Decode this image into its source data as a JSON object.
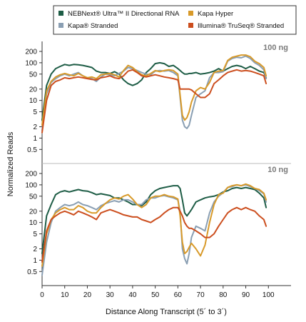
{
  "chart_data": {
    "type": "line",
    "xlabel": "Distance Along Transcript (5´ to 3´)",
    "ylabel": "Normalized Reads",
    "xlim": [
      0,
      110
    ],
    "x_ticks": [
      0,
      10,
      20,
      30,
      40,
      50,
      60,
      70,
      80,
      90,
      100
    ],
    "y_scale": "log",
    "ylim": [
      0.3,
      260
    ],
    "y_ticks": [
      0.5,
      1,
      2,
      5,
      10,
      20,
      50,
      100,
      200
    ],
    "y_tick_labels": [
      "0.5",
      "1",
      "2",
      "5",
      "10",
      "20",
      "50",
      "100",
      "200"
    ],
    "x": [
      0,
      2,
      4,
      6,
      8,
      10,
      12,
      14,
      16,
      18,
      20,
      22,
      24,
      26,
      28,
      30,
      32,
      34,
      36,
      38,
      40,
      42,
      44,
      46,
      48,
      50,
      52,
      54,
      56,
      58,
      60,
      61,
      62,
      63,
      64,
      65,
      66,
      68,
      70,
      72,
      74,
      76,
      78,
      80,
      82,
      84,
      86,
      88,
      90,
      92,
      94,
      96,
      98,
      99
    ],
    "legend": {
      "placement": "top",
      "entries": [
        {
          "name": "NEBNext® Ultra™ II Directional RNA",
          "color": "#1d5c45"
        },
        {
          "name": "Kapa® Stranded",
          "color": "#8a9fb3"
        },
        {
          "name": "Kapa Hyper",
          "color": "#d89a2a"
        },
        {
          "name": "Illumina® TruSeq® Stranded",
          "color": "#cc4e1e"
        }
      ]
    },
    "panels": [
      {
        "label": "100 ng",
        "series": [
          {
            "name": "NEBNext® Ultra™ II Directional RNA",
            "color": "#1d5c45",
            "values": [
              3,
              25,
              50,
              70,
              80,
              90,
              85,
              90,
              88,
              85,
              80,
              75,
              60,
              55,
              55,
              52,
              58,
              50,
              35,
              28,
              25,
              28,
              35,
              55,
              70,
              95,
              100,
              95,
              80,
              85,
              70,
              62,
              55,
              50,
              50,
              52,
              52,
              55,
              50,
              52,
              55,
              60,
              70,
              60,
              70,
              80,
              85,
              80,
              70,
              80,
              70,
              60,
              55,
              40
            ]
          },
          {
            "name": "Kapa® Stranded",
            "color": "#8a9fb3",
            "values": [
              1.6,
              15,
              30,
              38,
              45,
              50,
              45,
              50,
              55,
              45,
              40,
              38,
              32,
              42,
              50,
              48,
              45,
              52,
              60,
              75,
              70,
              62,
              55,
              50,
              48,
              60,
              62,
              60,
              62,
              55,
              45,
              12,
              3,
              2,
              1.8,
              2.2,
              4,
              12,
              15,
              18,
              40,
              55,
              55,
              58,
              110,
              130,
              140,
              135,
              150,
              130,
              100,
              85,
              65,
              38
            ]
          },
          {
            "name": "Kapa Hyper",
            "color": "#d89a2a",
            "values": [
              2.2,
              18,
              32,
              42,
              48,
              52,
              48,
              45,
              52,
              45,
              40,
              42,
              38,
              48,
              50,
              52,
              48,
              42,
              62,
              85,
              75,
              58,
              48,
              45,
              52,
              62,
              58,
              62,
              65,
              62,
              50,
              14,
              4,
              3,
              3.5,
              5,
              9,
              18,
              22,
              20,
              30,
              55,
              60,
              62,
              115,
              140,
              150,
              160,
              160,
              145,
              110,
              95,
              75,
              45
            ]
          },
          {
            "name": "Illumina® TruSeq® Stranded",
            "color": "#cc4e1e",
            "values": [
              1.4,
              10,
              25,
              32,
              35,
              40,
              38,
              40,
              42,
              40,
              38,
              36,
              35,
              40,
              42,
              45,
              40,
              38,
              45,
              60,
              65,
              55,
              45,
              42,
              45,
              48,
              45,
              42,
              40,
              38,
              35,
              20,
              20,
              20,
              20,
              20,
              19,
              15,
              12,
              12,
              15,
              28,
              35,
              45,
              55,
              60,
              65,
              60,
              62,
              60,
              55,
              50,
              45,
              28
            ]
          }
        ]
      },
      {
        "label": "10 ng",
        "series": [
          {
            "name": "NEBNext® Ultra™ II Directional RNA",
            "color": "#1d5c45",
            "values": [
              1.5,
              15,
              30,
              55,
              65,
              70,
              65,
              70,
              75,
              70,
              68,
              62,
              55,
              58,
              55,
              52,
              45,
              45,
              40,
              35,
              30,
              30,
              28,
              35,
              55,
              70,
              80,
              85,
              90,
              95,
              95,
              80,
              40,
              18,
              15,
              18,
              22,
              35,
              40,
              45,
              48,
              50,
              55,
              65,
              70,
              80,
              85,
              80,
              85,
              80,
              75,
              60,
              45,
              25
            ]
          },
          {
            "name": "Kapa® Stranded",
            "color": "#8a9fb3",
            "values": [
              0.4,
              3,
              10,
              20,
              25,
              30,
              28,
              30,
              35,
              30,
              28,
              25,
              22,
              28,
              32,
              35,
              38,
              35,
              40,
              40,
              35,
              30,
              30,
              40,
              45,
              45,
              50,
              52,
              48,
              45,
              40,
              20,
              2,
              1.1,
              0.8,
              1.5,
              4,
              8,
              7,
              6,
              18,
              35,
              50,
              62,
              85,
              90,
              100,
              95,
              100,
              90,
              80,
              70,
              58,
              35
            ]
          },
          {
            "name": "Kapa Hyper",
            "color": "#d89a2a",
            "values": [
              0.7,
              5,
              12,
              18,
              22,
              25,
              22,
              22,
              28,
              25,
              20,
              18,
              18,
              25,
              32,
              40,
              45,
              42,
              50,
              55,
              42,
              30,
              25,
              30,
              45,
              50,
              50,
              55,
              50,
              48,
              42,
              15,
              3,
              1.5,
              1.7,
              2.2,
              2.8,
              2,
              1.3,
              2.5,
              10,
              30,
              55,
              60,
              85,
              95,
              100,
              95,
              105,
              95,
              80,
              75,
              60,
              40
            ]
          },
          {
            "name": "Illumina® TruSeq® Stranded",
            "color": "#cc4e1e",
            "values": [
              0.9,
              6,
              12,
              15,
              18,
              20,
              18,
              16,
              20,
              18,
              16,
              14,
              12,
              18,
              20,
              22,
              20,
              18,
              16,
              15,
              14,
              14,
              12,
              11,
              10,
              12,
              14,
              18,
              22,
              25,
              25,
              20,
              15,
              10,
              8,
              7,
              7,
              6,
              5,
              4,
              4,
              5,
              8,
              12,
              18,
              22,
              25,
              22,
              25,
              22,
              20,
              15,
              12,
              8
            ]
          }
        ]
      }
    ]
  }
}
